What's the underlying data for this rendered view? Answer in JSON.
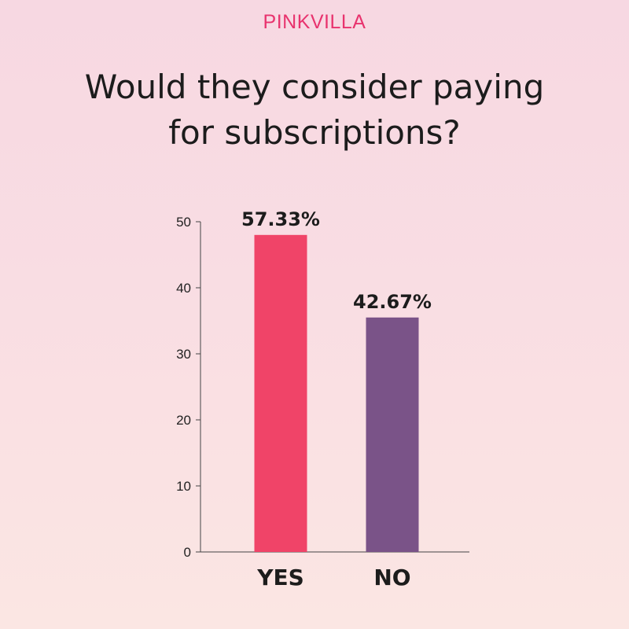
{
  "brand": "PINKVILLA",
  "colors": {
    "brand": "#e8336e",
    "yes_bar": "#f04468",
    "no_bar": "#7a5388"
  },
  "chart_data": {
    "type": "bar",
    "title": "Would they consider paying for subscriptions?",
    "categories": [
      "YES",
      "NO"
    ],
    "values": [
      48,
      35.5
    ],
    "data_labels": [
      "57.33%",
      "42.67%"
    ],
    "bar_colors": [
      "#f04468",
      "#7a5388"
    ],
    "ylim": [
      0,
      50
    ],
    "yticks": [
      0,
      10,
      20,
      30,
      40,
      50
    ],
    "xlabel": "",
    "ylabel": "",
    "grid": false,
    "legend": "none"
  }
}
